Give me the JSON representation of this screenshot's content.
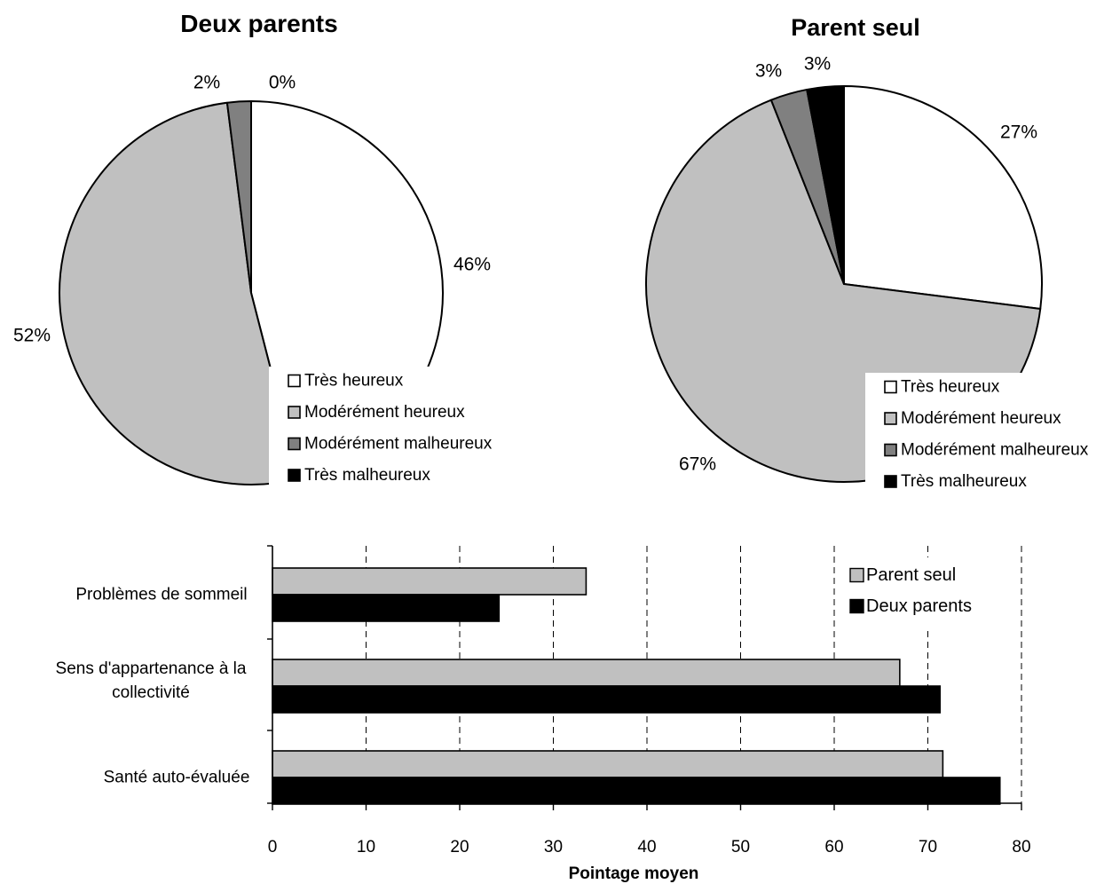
{
  "chart_data": [
    {
      "type": "pie",
      "title": "Deux parents",
      "categories": [
        "Très heureux",
        "Modérément heureux",
        "Modérément malheureux",
        "Très malheureux"
      ],
      "values": [
        46,
        52,
        2,
        0
      ],
      "labels": [
        "46%",
        "52%",
        "2%",
        "0%"
      ],
      "colors": [
        "#ffffff",
        "#c0c0c0",
        "#808080",
        "#000000"
      ],
      "legend": "bottom-right"
    },
    {
      "type": "pie",
      "title": "Parent seul",
      "categories": [
        "Très heureux",
        "Modérément heureux",
        "Modérément malheureux",
        "Très malheureux"
      ],
      "values": [
        27,
        67,
        3,
        3
      ],
      "labels": [
        "27%",
        "67%",
        "3%",
        "3%"
      ],
      "colors": [
        "#ffffff",
        "#c0c0c0",
        "#808080",
        "#000000"
      ],
      "legend": "bottom-right"
    },
    {
      "type": "bar",
      "orientation": "horizontal",
      "categories": [
        "Problèmes de sommeil",
        "Sens d'appartenance à la collectivité",
        "Santé auto-évaluée"
      ],
      "series": [
        {
          "name": "Parent seul",
          "values": [
            33.5,
            67,
            71.6
          ],
          "color": "#c0c0c0"
        },
        {
          "name": "Deux parents",
          "values": [
            24.2,
            71.3,
            77.7
          ],
          "color": "#000000"
        }
      ],
      "xlabel": "Pointage moyen",
      "ylabel": "",
      "xlim": [
        0,
        80
      ],
      "xticks": [
        0,
        10,
        20,
        30,
        40,
        50,
        60,
        70,
        80
      ],
      "grid": "vertical-dashed",
      "legend": "top-right"
    }
  ]
}
